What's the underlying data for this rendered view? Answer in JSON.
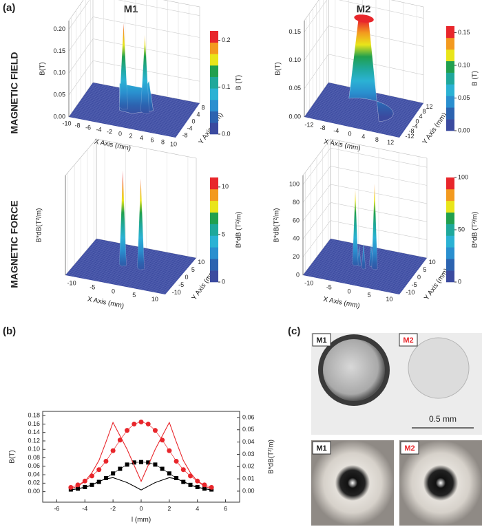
{
  "figure": {
    "panel_labels": [
      "(a)",
      "(b)",
      "(c)"
    ],
    "column_titles": [
      "M1",
      "M2"
    ],
    "row_titles": [
      "MAGNETIC FIELD",
      "MAGNETIC FORCE"
    ]
  },
  "chart_data": [
    {
      "type": "surface",
      "xlabel": "X Axis (mm)",
      "ylabel": "Y Axis (mm)",
      "zlabel": "B(T)",
      "xlim": [
        -10,
        10
      ],
      "xticks": [
        -10,
        -8,
        -6,
        -4,
        -2,
        0,
        2,
        4,
        6,
        8,
        10
      ],
      "ylim": [
        -10,
        10
      ],
      "yticks": [
        -8,
        -4,
        0,
        4,
        8
      ],
      "zlim": [
        0,
        0.22
      ],
      "zticks": [
        {
          "value": 0,
          "label": "0.00"
        },
        0.05,
        {
          "value": 0.1,
          "label": "0.10"
        },
        0.15,
        {
          "value": 0.2,
          "label": "0.20"
        }
      ],
      "colorbar": {
        "label": "B (T)",
        "lim": [
          0,
          0.22
        ],
        "ticks": [
          {
            "value": 0,
            "label": "0.0"
          },
          0.1,
          0.2
        ],
        "colors": [
          "#3b4a9f",
          "#2c63b0",
          "#2a8fcf",
          "#2bb2d4",
          "#1fa89b",
          "#21a04e",
          "#e9e51a",
          "#f39a1f",
          "#e8262b"
        ]
      }
    },
    {
      "type": "surface",
      "xlabel": "X Axis (mm)",
      "ylabel": "Y Axis (mm)",
      "zlabel": "B(T)",
      "xlim": [
        -14,
        14
      ],
      "xticks": [
        -12,
        -8,
        -4,
        0,
        4,
        8,
        12
      ],
      "ylim": [
        -14,
        14
      ],
      "yticks": [
        -12,
        -8,
        -4,
        0,
        4,
        8,
        12
      ],
      "zlim": [
        0,
        0.17
      ],
      "zticks": [
        {
          "value": 0,
          "label": "0.00"
        },
        0.05,
        {
          "value": 0.1,
          "label": "0.10"
        },
        0.15
      ],
      "colorbar": {
        "label": "B (T)",
        "lim": [
          0,
          0.16
        ],
        "ticks": [
          {
            "value": 0,
            "label": "0.00"
          },
          0.05,
          {
            "value": 0.1,
            "label": "0.10"
          },
          0.15
        ],
        "colors": [
          "#3b4a9f",
          "#2c63b0",
          "#2a8fcf",
          "#2bb2d4",
          "#1fa89b",
          "#21a04e",
          "#e9e51a",
          "#f39a1f",
          "#e8262b"
        ]
      }
    },
    {
      "type": "surface",
      "xlabel": "X Axis (mm)",
      "ylabel": "Y Axis (mm)",
      "zlabel": "B*dB(T²/m)",
      "xlim": [
        -12,
        12
      ],
      "xticks": [
        -10,
        -5,
        0,
        5,
        10
      ],
      "ylim": [
        -12,
        12
      ],
      "yticks": [
        -10,
        -5,
        0,
        5,
        10
      ],
      "zlim": [
        0,
        11
      ],
      "zticks": [],
      "colorbar": {
        "label": "B*dB (T²/m)",
        "lim": [
          0,
          11
        ],
        "ticks": [
          0,
          5,
          10
        ],
        "colors": [
          "#3b4a9f",
          "#2c63b0",
          "#2a8fcf",
          "#2bb2d4",
          "#1fa89b",
          "#21a04e",
          "#e9e51a",
          "#f39a1f",
          "#e8262b"
        ]
      }
    },
    {
      "type": "surface",
      "xlabel": "X Axis (mm)",
      "ylabel": "Y Axis (mm)",
      "zlabel": "B*dB(T²/m)",
      "xlim": [
        -12,
        12
      ],
      "xticks": [
        -10,
        -5,
        0,
        5,
        10
      ],
      "ylim": [
        -12,
        12
      ],
      "yticks": [
        -10,
        -5,
        0,
        5,
        10
      ],
      "zlim": [
        0,
        110
      ],
      "zticks": [
        0,
        20,
        40,
        60,
        80,
        100
      ],
      "colorbar": {
        "label": "B*dB (T²/m)",
        "lim": [
          0,
          100
        ],
        "ticks": [
          0,
          50,
          100
        ],
        "colors": [
          "#3b4a9f",
          "#2c63b0",
          "#2a8fcf",
          "#2bb2d4",
          "#1fa89b",
          "#21a04e",
          "#e9e51a",
          "#f39a1f",
          "#e8262b"
        ]
      }
    },
    {
      "type": "line",
      "xlabel": "l (mm)",
      "ylabel": "B(T)",
      "y2label": "B*dB(T²/m)",
      "xlim": [
        -7,
        7
      ],
      "xticks": [
        -6,
        -4,
        -2,
        0,
        2,
        4,
        6
      ],
      "ylim": [
        -0.025,
        0.19
      ],
      "yticks": [
        {
          "value": 0,
          "label": "0.00"
        },
        0.02,
        0.04,
        0.06,
        0.08,
        {
          "value": 0.1,
          "label": "0.10"
        },
        0.12,
        0.14,
        0.16,
        0.18
      ],
      "y2lim": [
        -0.009,
        0.065
      ],
      "y2ticks": [
        {
          "value": 0,
          "label": "0.00"
        },
        0.01,
        0.02,
        0.03,
        0.04,
        0.05,
        0.06
      ],
      "x": [
        -5,
        -4.5,
        -4,
        -3.5,
        -3,
        -2.5,
        -2,
        -1.5,
        -1,
        -0.5,
        0,
        0.5,
        1,
        1.5,
        2,
        2.5,
        3,
        3.5,
        4,
        4.5,
        5
      ],
      "series": [
        {
          "color": "#000000",
          "marker": "square",
          "axis": "y",
          "values": [
            0.005,
            0.007,
            0.011,
            0.016,
            0.023,
            0.032,
            0.043,
            0.054,
            0.064,
            0.069,
            0.07,
            0.069,
            0.064,
            0.054,
            0.043,
            0.032,
            0.023,
            0.016,
            0.011,
            0.007,
            0.005
          ]
        },
        {
          "color": "#e8262b",
          "marker": "circle",
          "axis": "y",
          "values": [
            0.01,
            0.016,
            0.025,
            0.037,
            0.052,
            0.072,
            0.097,
            0.122,
            0.145,
            0.16,
            0.165,
            0.16,
            0.145,
            0.122,
            0.097,
            0.072,
            0.052,
            0.037,
            0.025,
            0.016,
            0.01
          ]
        },
        {
          "color": "#e8262b",
          "marker": "none",
          "axis": "y2",
          "values": [
            0.002,
            0.004,
            0.008,
            0.015,
            0.025,
            0.04,
            0.056,
            0.045,
            0.034,
            0.021,
            0.008,
            0.021,
            0.034,
            0.045,
            0.056,
            0.04,
            0.025,
            0.015,
            0.008,
            0.004,
            0.002
          ]
        },
        {
          "color": "#000000",
          "marker": "none",
          "axis": "y2",
          "values": [
            0.001,
            0.002,
            0.003,
            0.005,
            0.008,
            0.01,
            0.011,
            0.009,
            0.007,
            0.004,
            0.001,
            0.004,
            0.007,
            0.009,
            0.011,
            0.01,
            0.008,
            0.005,
            0.003,
            0.002,
            0.001
          ]
        }
      ]
    }
  ],
  "photos": {
    "top_labels": [
      "M1",
      "M2"
    ],
    "scale_bar": "0.5 mm",
    "bottom_labels": [
      "M1",
      "M2"
    ]
  }
}
